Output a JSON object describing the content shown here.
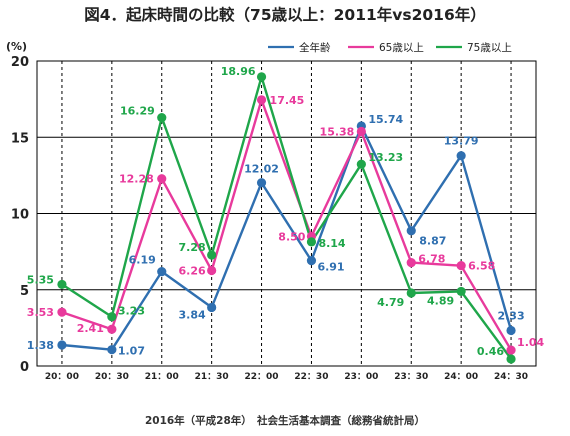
{
  "chart_data": {
    "type": "line",
    "title": "図4．起床時間の比較（75歳以上：2011年vs2016年）",
    "caption": "2016年（平成28年）　社会生活基本調査（総務省統計局）",
    "ylabel": "(%)",
    "xlabel": "",
    "ylim": [
      0,
      20
    ],
    "yticks": [
      "0",
      "5",
      "10",
      "15",
      "20"
    ],
    "grid": "horizontal solid, vertical dashed",
    "legend_position": "top-right",
    "categories": [
      "20：00",
      "20：30",
      "21：00",
      "21：30",
      "22：00",
      "22：30",
      "23：00",
      "23：30",
      "24：00",
      "24：30"
    ],
    "series": [
      {
        "name": "全年齢",
        "color": "#2f6fb0",
        "values": [
          1.38,
          1.07,
          6.19,
          3.84,
          12.02,
          6.91,
          15.74,
          8.87,
          13.79,
          2.33
        ],
        "labels": [
          "1.38",
          "1.07",
          "6.19",
          "3.84",
          "12.02",
          "6.91",
          "15.74",
          "8.87",
          "13.79",
          "2.33"
        ]
      },
      {
        "name": "65歳以上",
        "color": "#e83a9c",
        "values": [
          3.53,
          2.41,
          12.28,
          6.26,
          17.45,
          8.5,
          15.38,
          6.78,
          6.58,
          1.04
        ],
        "labels": [
          "3.53",
          "2.41",
          "12.28",
          "6.26",
          "17.45",
          "8.50",
          "15.38",
          "6.78",
          "6.58",
          "1.04"
        ]
      },
      {
        "name": "75歳以上",
        "color": "#1fa64a",
        "values": [
          5.35,
          3.23,
          16.29,
          7.28,
          18.96,
          8.14,
          13.23,
          4.79,
          4.89,
          0.46
        ],
        "labels": [
          "5.35",
          "3.23",
          "16.29",
          "7.28",
          "18.96",
          "8.14",
          "13.23",
          "4.79",
          "4.89",
          "0.46"
        ]
      }
    ]
  }
}
